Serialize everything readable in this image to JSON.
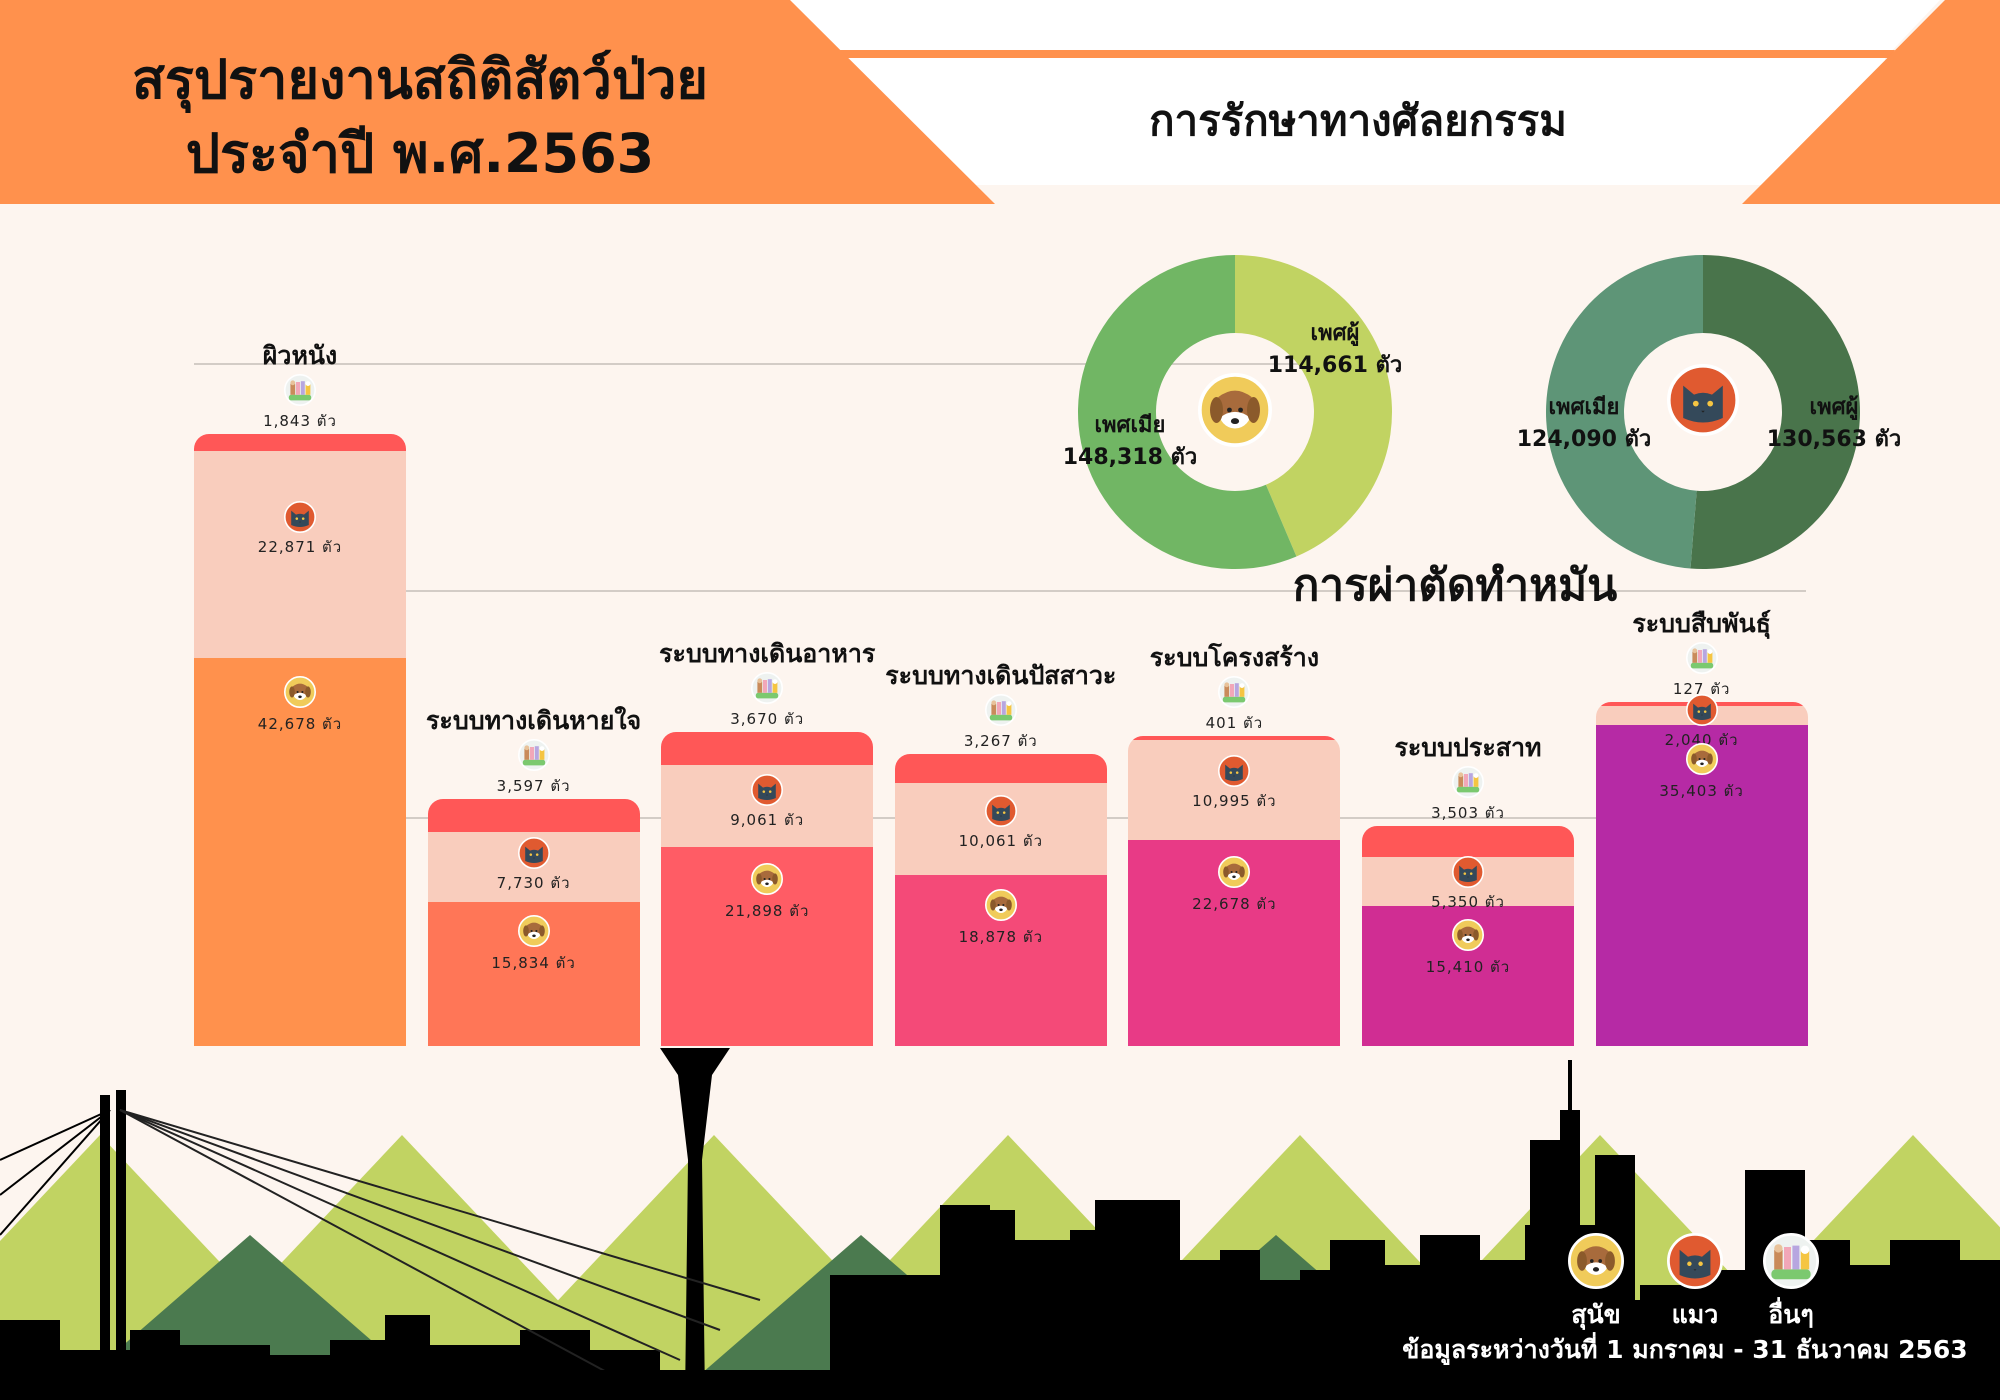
{
  "header": {
    "title_line1": "สรุปรายงานสถิติสัตว์ป่วย",
    "title_line2": "ประจำปี พ.ศ.2563",
    "section_title": "การรักษาทางศัลยกรรม",
    "colors": {
      "orange": "#FF914D",
      "white": "#FFFFFF",
      "background": "#FDF5EF"
    }
  },
  "chart_data": [
    {
      "type": "bar",
      "stacked": true,
      "unit": "ตัว",
      "categories": [
        "ผิวหนัง",
        "ระบบทางเดินหายใจ",
        "ระบบทางเดินอาหาร",
        "ระบบทางเดินปัสสาวะ",
        "ระบบโครงสร้าง",
        "ระบบประสาท",
        "ระบบสืบพันธุ์"
      ],
      "series": [
        {
          "name": "สุนัข",
          "icon": "dog-icon",
          "values": [
            42678,
            15834,
            21898,
            18878,
            22678,
            15410,
            35403
          ]
        },
        {
          "name": "แมว",
          "icon": "cat-icon",
          "color": "#F9CDBD",
          "values": [
            22871,
            7730,
            9061,
            10061,
            10995,
            5350,
            2040
          ]
        },
        {
          "name": "อื่นๆ",
          "icon": "other-animals-icon",
          "color": "#FF5757",
          "values": [
            1843,
            3597,
            3670,
            3267,
            401,
            3503,
            127
          ]
        }
      ],
      "dog_segment_colors": [
        "#FF914D",
        "#FF7657",
        "#FF5C65",
        "#F44A78",
        "#E83A86",
        "#D02D93",
        "#B62AA5"
      ],
      "grid": true,
      "legend": "bottom-right"
    },
    {
      "type": "pie",
      "donut": true,
      "title": "การผ่าตัดทำหมัน",
      "animal": "สุนัข",
      "icon": "dog-icon",
      "unit": "ตัว",
      "slices": [
        {
          "label": "เพศผู้",
          "value": 114661,
          "color": "#C1D362"
        },
        {
          "label": "เพศเมีย",
          "value": 148318,
          "color": "#71B664"
        }
      ]
    },
    {
      "type": "pie",
      "donut": true,
      "title": "การผ่าตัดทำหมัน",
      "animal": "แมว",
      "icon": "cat-icon",
      "unit": "ตัว",
      "slices": [
        {
          "label": "เพศผู้",
          "value": 130563,
          "color": "#49744B"
        },
        {
          "label": "เพศเมีย",
          "value": 124090,
          "color": "#5E9577"
        }
      ]
    }
  ],
  "sterilization_title": "การผ่าตัดทำหมัน",
  "legend": {
    "items": [
      {
        "label": "สุนัข",
        "icon": "dog-icon"
      },
      {
        "label": "แมว",
        "icon": "cat-icon"
      },
      {
        "label": "อื่นๆ",
        "icon": "other-animals-icon"
      }
    ]
  },
  "footer": {
    "date_range": "ข้อมูลระหว่างวันที่ 1 มกราคม - 31 ธันวาคม 2563"
  }
}
